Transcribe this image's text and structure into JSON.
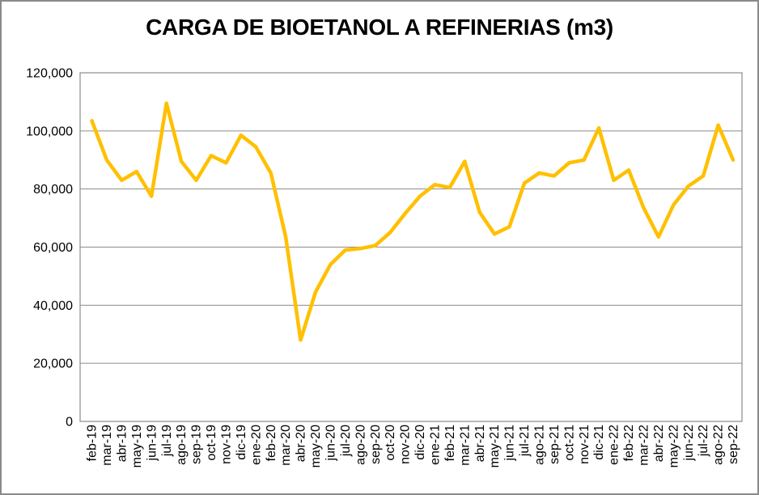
{
  "window": {
    "background_color": "#FFFFFF",
    "frame_border_color": "#8A8A8A"
  },
  "chart_data": {
    "type": "line",
    "title": "CARGA DE BIOETANOL A REFINERIAS (m3)",
    "xlabel": "",
    "ylabel": "",
    "ylim": [
      0,
      120000
    ],
    "ytick_step": 20000,
    "ytick_labels": [
      "0",
      "20,000",
      "40,000",
      "60,000",
      "80,000",
      "100,000",
      "120,000"
    ],
    "grid": true,
    "gridline_color": "#8C8C8C",
    "legend": "none",
    "series_color": "#FFC000",
    "categories": [
      "feb-19",
      "mar-19",
      "abr-19",
      "may-19",
      "jun-19",
      "jul-19",
      "ago-19",
      "sep-19",
      "oct-19",
      "nov-19",
      "dic-19",
      "ene-20",
      "feb-20",
      "mar-20",
      "abr-20",
      "may-20",
      "jun-20",
      "jul-20",
      "ago-20",
      "sep-20",
      "oct-20",
      "nov-20",
      "dic-20",
      "ene-21",
      "feb-21",
      "mar-21",
      "abr-21",
      "may-21",
      "jun-21",
      "jul-21",
      "ago-21",
      "sep-21",
      "oct-21",
      "nov-21",
      "dic-21",
      "ene-22",
      "feb-22",
      "mar-22",
      "abr-22",
      "may-22",
      "jun-22",
      "jul-22",
      "ago-22",
      "sep-22"
    ],
    "values": [
      103500,
      90000,
      83000,
      86000,
      77500,
      109500,
      89500,
      83000,
      91500,
      89000,
      98500,
      94500,
      85500,
      63500,
      28000,
      44500,
      54000,
      59000,
      59500,
      60500,
      65000,
      71500,
      77500,
      81500,
      80500,
      89500,
      72000,
      64500,
      67000,
      82000,
      85500,
      84500,
      89000,
      90000,
      101000,
      83000,
      86500,
      73500,
      63500,
      74500,
      81000,
      84500,
      102000,
      90000
    ]
  }
}
